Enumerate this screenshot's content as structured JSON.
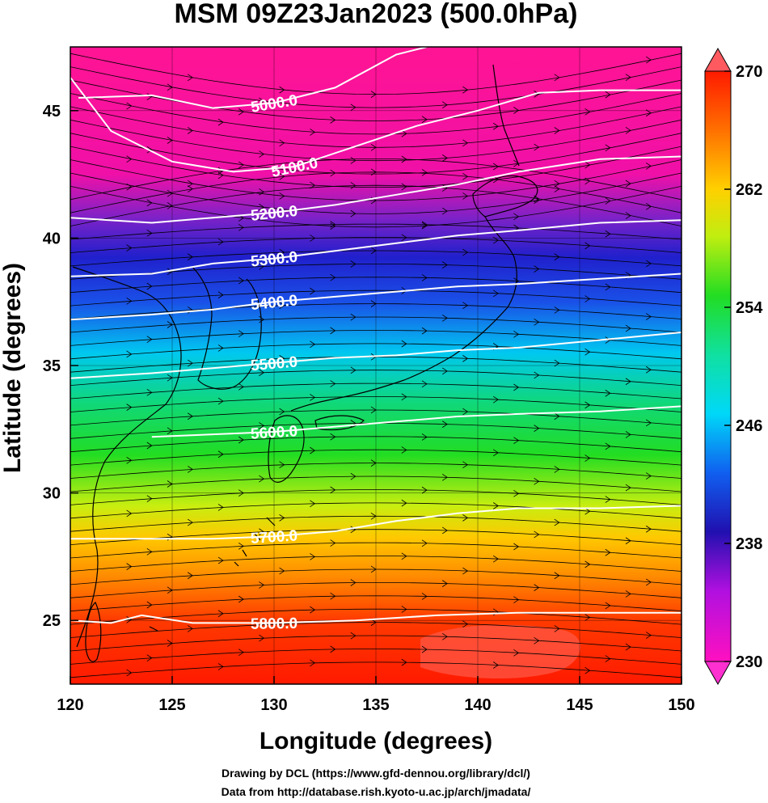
{
  "title": "MSM 09Z23Jan2023 (500.0hPa)",
  "xlabel": "Longitude (degrees)",
  "ylabel": "Latitude  (degrees)",
  "credits": [
    "Drawing by DCL (https://www.gfd-dennou.org/library/dcl/)",
    "Data from http://database.rish.kyoto-u.ac.jp/arch/jmadata/"
  ],
  "map": {
    "lon_range": [
      120,
      150
    ],
    "lat_range": [
      22.5,
      47.5
    ],
    "lon_ticks": [
      "120",
      "125",
      "130",
      "135",
      "140",
      "145",
      "150"
    ],
    "lat_ticks": [
      "25",
      "30",
      "35",
      "40",
      "45"
    ]
  },
  "colorbar": {
    "range": [
      230,
      270
    ],
    "tick_labels": [
      "270",
      "262",
      "254",
      "246",
      "238",
      "230"
    ],
    "colors": [
      "#ff1493",
      "#8a2be2",
      "#1a2bd6",
      "#00e5ff",
      "#22dd22",
      "#e8f000",
      "#ff8c00",
      "#ff1a00"
    ]
  },
  "chart_data": {
    "type": "contour",
    "field": "geopotential height (contours) and temperature (shading) at 500.0hPa",
    "contours": [
      {
        "label": "5000.0",
        "points": [
          [
            120.4,
            45.5
          ],
          [
            124,
            45.6
          ],
          [
            127,
            45.1
          ],
          [
            130,
            45.3
          ],
          [
            133,
            45.9
          ],
          [
            136,
            47.2
          ],
          [
            137.5,
            47.5
          ]
        ]
      },
      {
        "label": "5100.0",
        "points": [
          [
            120,
            46.3
          ],
          [
            122,
            44.2
          ],
          [
            125,
            43.0
          ],
          [
            128,
            42.6
          ],
          [
            131,
            42.8
          ],
          [
            134,
            43.6
          ],
          [
            137,
            44.4
          ],
          [
            140,
            45.0
          ],
          [
            143,
            45.7
          ],
          [
            146,
            45.8
          ],
          [
            150,
            45.8
          ]
        ]
      },
      {
        "label": "5200.0",
        "points": [
          [
            120,
            40.8
          ],
          [
            124,
            40.6
          ],
          [
            127,
            40.8
          ],
          [
            130,
            41.0
          ],
          [
            133,
            41.3
          ],
          [
            136,
            41.7
          ],
          [
            139,
            42.1
          ],
          [
            142,
            42.6
          ],
          [
            146,
            43.1
          ],
          [
            150,
            43.2
          ]
        ]
      },
      {
        "label": "5300.0",
        "points": [
          [
            120,
            38.5
          ],
          [
            124,
            38.6
          ],
          [
            127,
            39.0
          ],
          [
            130,
            39.2
          ],
          [
            133,
            39.5
          ],
          [
            136,
            39.8
          ],
          [
            139,
            40.1
          ],
          [
            142,
            40.3
          ],
          [
            146,
            40.6
          ],
          [
            150,
            40.7
          ]
        ]
      },
      {
        "label": "5400.0",
        "points": [
          [
            120,
            36.8
          ],
          [
            124,
            37.0
          ],
          [
            127,
            37.2
          ],
          [
            130,
            37.5
          ],
          [
            133,
            37.7
          ],
          [
            136,
            37.9
          ],
          [
            139,
            38.1
          ],
          [
            142,
            38.2
          ],
          [
            146,
            38.4
          ],
          [
            150,
            38.6
          ]
        ]
      },
      {
        "label": "5500.0",
        "points": [
          [
            120,
            34.5
          ],
          [
            124,
            34.7
          ],
          [
            127,
            34.9
          ],
          [
            130,
            35.1
          ],
          [
            133,
            35.3
          ],
          [
            136,
            35.4
          ],
          [
            139,
            35.6
          ],
          [
            142,
            35.7
          ],
          [
            146,
            36.0
          ],
          [
            150,
            36.3
          ]
        ]
      },
      {
        "label": "5600.0",
        "points": [
          [
            124,
            32.2
          ],
          [
            127,
            32.3
          ],
          [
            130,
            32.4
          ],
          [
            133,
            32.6
          ],
          [
            136,
            32.8
          ],
          [
            139,
            33.0
          ],
          [
            142,
            33.1
          ],
          [
            146,
            33.2
          ],
          [
            150,
            33.4
          ]
        ]
      },
      {
        "label": "5700.0",
        "points": [
          [
            120,
            28.2
          ],
          [
            124,
            28.2
          ],
          [
            127,
            28.2
          ],
          [
            130,
            28.3
          ],
          [
            133,
            28.5
          ],
          [
            136,
            28.9
          ],
          [
            139,
            29.2
          ],
          [
            142,
            29.4
          ],
          [
            146,
            29.4
          ],
          [
            150,
            29.5
          ]
        ]
      },
      {
        "label": "5800.0",
        "points": [
          [
            120,
            25.0
          ],
          [
            122,
            24.9
          ],
          [
            123.5,
            25.2
          ],
          [
            126,
            24.9
          ],
          [
            130,
            24.9
          ],
          [
            134,
            25.0
          ],
          [
            138,
            25.2
          ],
          [
            142,
            25.3
          ],
          [
            146,
            25.3
          ],
          [
            150,
            25.3
          ]
        ]
      }
    ]
  }
}
